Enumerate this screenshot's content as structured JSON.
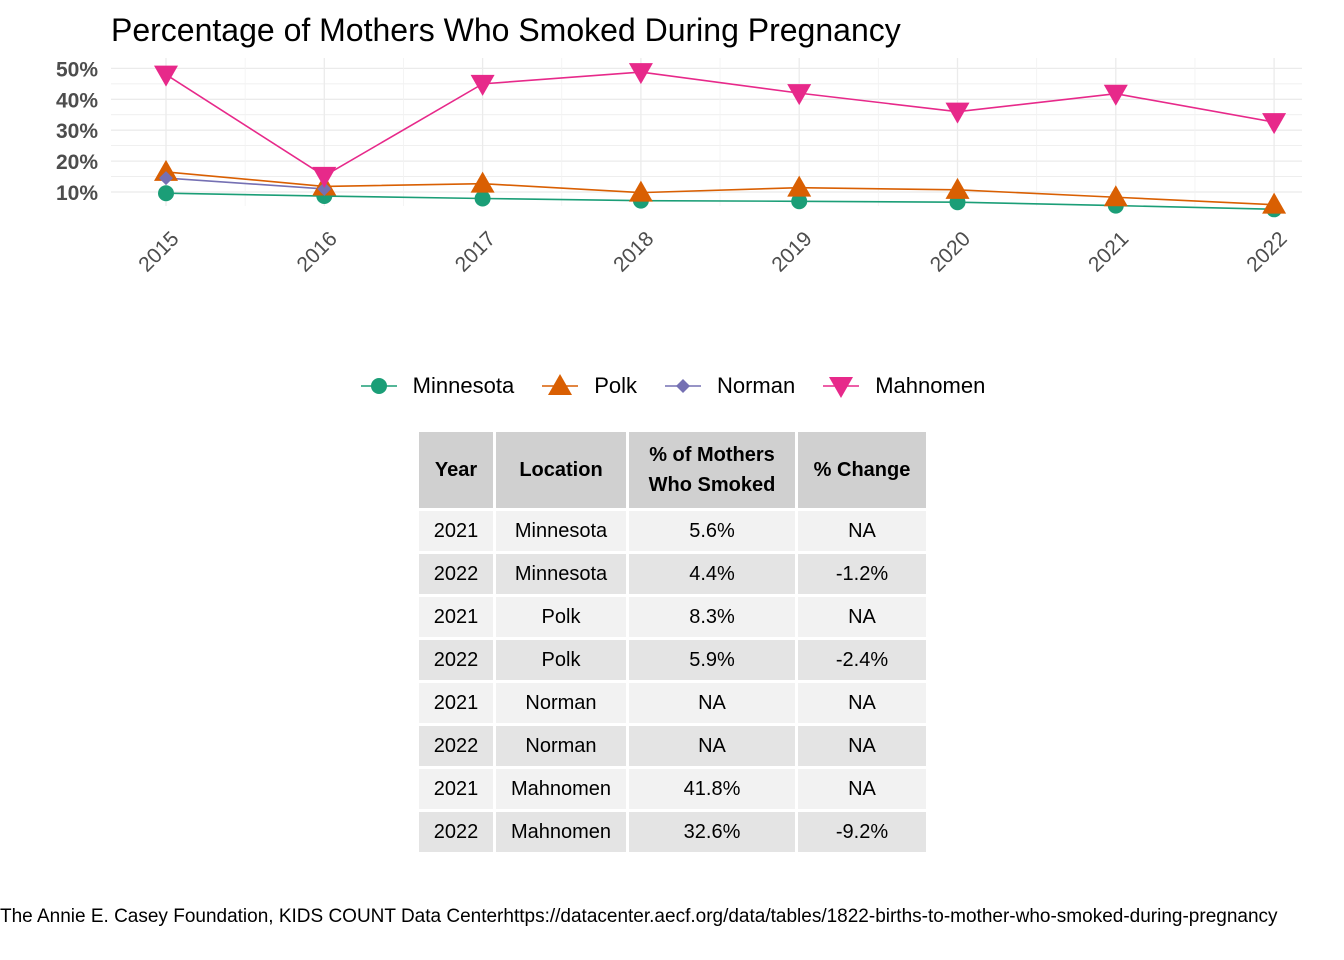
{
  "chart_data": {
    "type": "line",
    "title": "Percentage of Mothers Who Smoked During Pregnancy",
    "xlabel": "",
    "ylabel": "",
    "x": [
      "2015",
      "2016",
      "2017",
      "2018",
      "2019",
      "2020",
      "2021",
      "2022"
    ],
    "y_ticks": [
      "10%",
      "20%",
      "30%",
      "40%",
      "50%"
    ],
    "ylim": [
      4,
      51
    ],
    "grid": true,
    "legend_position": "bottom",
    "series": [
      {
        "name": "Minnesota",
        "color": "#1b9e77",
        "marker": "circle",
        "values": [
          9.6,
          8.7,
          7.9,
          7.2,
          7.0,
          6.7,
          5.6,
          4.4
        ]
      },
      {
        "name": "Polk",
        "color": "#d95f02",
        "marker": "triangle-up",
        "values": [
          16.5,
          11.8,
          12.7,
          9.8,
          11.4,
          10.7,
          8.3,
          5.9
        ]
      },
      {
        "name": "Norman",
        "color": "#7570b3",
        "marker": "diamond",
        "values": [
          14.5,
          11.0,
          null,
          null,
          null,
          null,
          null,
          null
        ]
      },
      {
        "name": "Mahnomen",
        "color": "#e7298a",
        "marker": "triangle-down",
        "values": [
          48.0,
          15.2,
          45.0,
          48.8,
          42.0,
          36.0,
          41.8,
          32.6
        ]
      }
    ]
  },
  "table": {
    "headers": [
      "Year",
      "Location",
      "% of Mothers Who Smoked",
      "% Change"
    ],
    "rows": [
      [
        "2021",
        "Minnesota",
        "5.6%",
        "NA"
      ],
      [
        "2022",
        "Minnesota",
        "4.4%",
        "-1.2%"
      ],
      [
        "2021",
        "Polk",
        "8.3%",
        "NA"
      ],
      [
        "2022",
        "Polk",
        "5.9%",
        "-2.4%"
      ],
      [
        "2021",
        "Norman",
        "NA",
        "NA"
      ],
      [
        "2022",
        "Norman",
        "NA",
        "NA"
      ],
      [
        "2021",
        "Mahnomen",
        "41.8%",
        "NA"
      ],
      [
        "2022",
        "Mahnomen",
        "32.6%",
        "-9.2%"
      ]
    ]
  },
  "caption": "The Annie E. Casey Foundation, KIDS COUNT Data Centerhttps://datacenter.aecf.org/data/tables/1822-births-to-mother-who-smoked-during-pregnancy"
}
